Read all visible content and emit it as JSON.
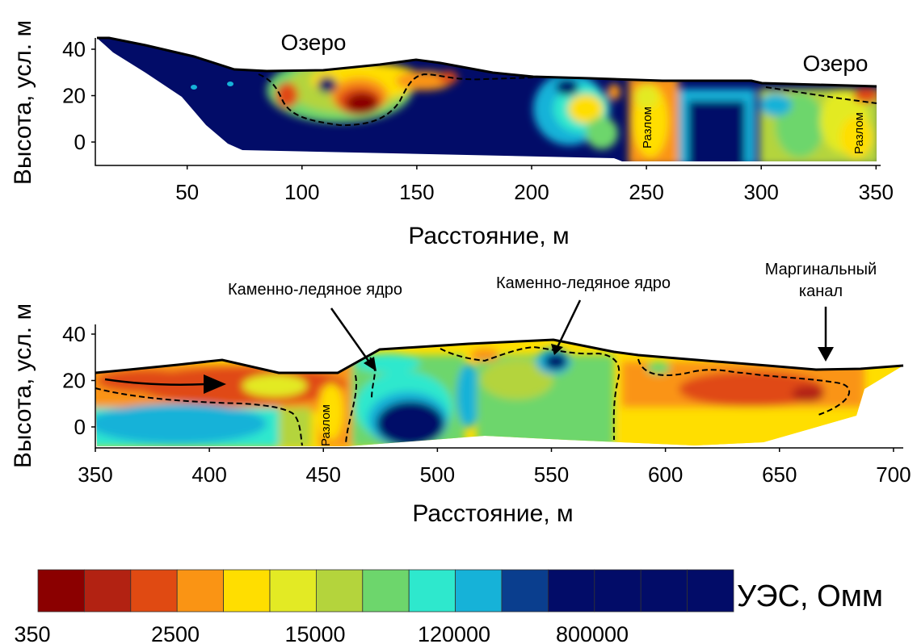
{
  "colorbar": {
    "title": "УЭС, Омм",
    "tick_labels": [
      "350",
      "2500",
      "15000",
      "120000",
      "800000"
    ],
    "colors": [
      "#8b0000",
      "#b22212",
      "#e04a12",
      "#fa9414",
      "#ffde00",
      "#e3ea24",
      "#b4d43c",
      "#6dd66c",
      "#2ee8cd",
      "#16b2d8",
      "#0a3e8e",
      "#020c68",
      "#020c68",
      "#020c68",
      "#020c68"
    ]
  },
  "chart_data": [
    {
      "type": "heatmap",
      "panel": "top",
      "xlabel": "Расстояние, м",
      "ylabel": "Высота, усл. м",
      "xlim": [
        10,
        352
      ],
      "ylim": [
        -8,
        48
      ],
      "x_ticks": [
        "50",
        "100",
        "150",
        "200",
        "250",
        "300",
        "350"
      ],
      "y_ticks": [
        "0",
        "20",
        "40"
      ],
      "annotations": [
        "Озеро",
        "Озеро",
        "Разлом",
        "Разлом"
      ],
      "surface_profile": [
        [
          12,
          46
        ],
        [
          20,
          46
        ],
        [
          40,
          42
        ],
        [
          60,
          37
        ],
        [
          75,
          33
        ],
        [
          100,
          33
        ],
        [
          125,
          35
        ],
        [
          148,
          38
        ],
        [
          160,
          37
        ],
        [
          185,
          32
        ],
        [
          205,
          29
        ],
        [
          230,
          29
        ],
        [
          260,
          28
        ],
        [
          290,
          28
        ],
        [
          298,
          29
        ],
        [
          310,
          26
        ],
        [
          350,
          26
        ]
      ]
    },
    {
      "type": "heatmap",
      "panel": "bottom",
      "xlabel": "Расстояние, м",
      "ylabel": "Высота, усл. м",
      "xlim": [
        350,
        705
      ],
      "ylim": [
        -8,
        48
      ],
      "x_ticks": [
        "350",
        "400",
        "450",
        "500",
        "550",
        "600",
        "650",
        "700"
      ],
      "y_ticks": [
        "0",
        "20",
        "40"
      ],
      "annotations": [
        "Каменно-ледяное ядро",
        "Каменно-ледяное ядро",
        "Маргинальный",
        "канал",
        "Разлом"
      ],
      "surface_profile": [
        [
          350,
          26
        ],
        [
          380,
          28
        ],
        [
          405,
          31
        ],
        [
          430,
          25
        ],
        [
          455,
          25
        ],
        [
          475,
          33
        ],
        [
          520,
          36
        ],
        [
          550,
          40
        ],
        [
          570,
          35
        ],
        [
          590,
          33
        ],
        [
          620,
          31
        ],
        [
          665,
          26
        ],
        [
          685,
          26
        ],
        [
          705,
          28
        ]
      ]
    }
  ]
}
